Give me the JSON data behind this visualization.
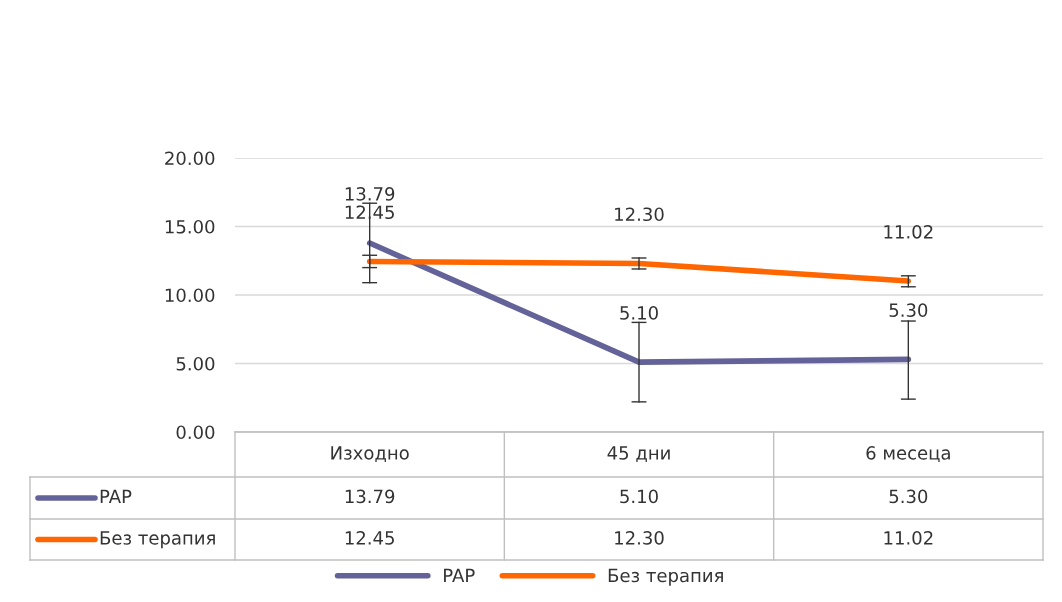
{
  "chart_data": {
    "type": "line",
    "categories": [
      "Изходно",
      "45 дни",
      "6 месеца"
    ],
    "series": [
      {
        "name": "PAP",
        "color": "#636399",
        "values": [
          13.79,
          5.1,
          5.3
        ],
        "value_labels": [
          "13.79",
          "5.10",
          "5.30"
        ],
        "errors": [
          [
            10.9,
            16.7
          ],
          [
            2.2,
            8.0
          ],
          [
            2.4,
            8.1
          ]
        ]
      },
      {
        "name": "Без терапия",
        "color": "#ff6600",
        "values": [
          12.45,
          12.3,
          11.02
        ],
        "value_labels": [
          "12.45",
          "12.30",
          "11.02"
        ],
        "errors": [
          [
            12.0,
            12.9
          ],
          [
            11.9,
            12.7
          ],
          [
            10.6,
            11.4
          ]
        ]
      }
    ],
    "ylim": [
      0,
      20
    ],
    "yticks": [
      {
        "value": 0,
        "label": "0.00"
      },
      {
        "value": 5,
        "label": "5.00"
      },
      {
        "value": 10,
        "label": "10.00"
      },
      {
        "value": 15,
        "label": "15.00"
      },
      {
        "value": 20,
        "label": "20.00"
      }
    ],
    "grid": "y",
    "legend": "bottom",
    "marker": "none",
    "line_style": "solid"
  }
}
